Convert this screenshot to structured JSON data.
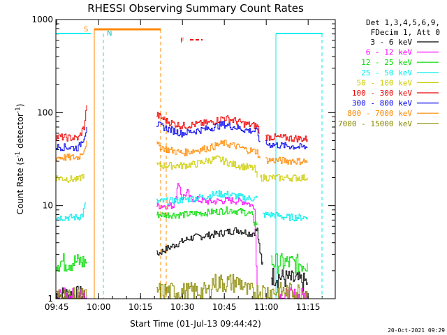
{
  "chart_data": {
    "type": "line",
    "title": "RHESSI Observing Summary Count Rates",
    "xlabel": "Start Time (01-Jul-13 09:44:42)",
    "ylabel_main": "Count Rate (s",
    "ylabel_sup1": "-1",
    "ylabel_mid": " detector",
    "ylabel_sup2": "-1",
    "ylabel_end": ")",
    "yscale": "log",
    "ylim": [
      1,
      1000
    ],
    "xlim_minutes": [
      0,
      100
    ],
    "x_ticks": [
      {
        "label": "09:45",
        "t": 0.3
      },
      {
        "label": "10:00",
        "t": 15.3
      },
      {
        "label": "10:15",
        "t": 30.3
      },
      {
        "label": "10:30",
        "t": 45.3
      },
      {
        "label": "10:45",
        "t": 60.3
      },
      {
        "label": "11:00",
        "t": 75.3
      },
      {
        "label": "11:15",
        "t": 90.3
      }
    ],
    "y_ticks": [
      {
        "label": "1",
        "v": 1
      },
      {
        "label": "10",
        "v": 10
      },
      {
        "label": "100",
        "v": 100
      },
      {
        "label": "1000",
        "v": 1000
      }
    ],
    "legend_header": [
      "Det 1,3,4,5,6,9,",
      "FDecim 1, Att 0"
    ],
    "flags": {
      "S": "S",
      "N": "N",
      "F": "F"
    },
    "series": [
      {
        "name": "3 - 6 keV",
        "color": "#000000",
        "segments": [
          [
            [
              0,
              1.1
            ],
            [
              11,
              1.1
            ]
          ],
          [
            [
              36,
              3
            ],
            [
              40,
              3.5
            ],
            [
              48,
              4.5
            ],
            [
              58,
              5
            ],
            [
              65,
              5.5
            ],
            [
              70,
              5
            ],
            [
              72,
              5.5
            ],
            [
              73,
              3
            ],
            [
              74,
              2.5
            ]
          ],
          [
            [
              77,
              1.8
            ],
            [
              85,
              1.6
            ],
            [
              90,
              1.5
            ]
          ]
        ]
      },
      {
        "name": "6 - 12 keV",
        "color": "#ff00ff",
        "segments": [
          [
            [
              0,
              1.05
            ],
            [
              11,
              1.05
            ]
          ],
          [
            [
              36,
              10
            ],
            [
              42,
              10
            ],
            [
              44,
              18
            ],
            [
              45,
              12
            ],
            [
              47,
              14
            ],
            [
              48,
              12
            ],
            [
              55,
              11
            ],
            [
              62,
              11.5
            ],
            [
              68,
              11
            ],
            [
              70,
              10
            ],
            [
              71,
              10
            ],
            [
              72,
              1.1
            ]
          ],
          [
            [
              80,
              1.05
            ],
            [
              90,
              1.05
            ]
          ]
        ]
      },
      {
        "name": "12 - 25 keV",
        "color": "#00dd00",
        "segments": [
          [
            [
              0,
              2.5
            ],
            [
              11,
              2.5
            ]
          ],
          [
            [
              36,
              8
            ],
            [
              45,
              8
            ],
            [
              55,
              8.5
            ],
            [
              62,
              9
            ],
            [
              68,
              8.5
            ],
            [
              70,
              8
            ],
            [
              71,
              6.5
            ],
            [
              72,
              6.5
            ]
          ],
          [
            [
              77,
              2.5
            ],
            [
              88,
              2.4
            ],
            [
              90,
              2.4
            ]
          ]
        ]
      },
      {
        "name": "25 - 50 keV",
        "color": "#00eeee",
        "segments": [
          [
            [
              0,
              7.5
            ],
            [
              8,
              7.5
            ],
            [
              9.5,
              8
            ],
            [
              10.5,
              11
            ]
          ],
          [
            [
              36,
              11
            ],
            [
              45,
              11.5
            ],
            [
              53,
              12.5
            ],
            [
              58,
              13.5
            ],
            [
              63,
              13
            ],
            [
              68,
              12
            ],
            [
              72,
              12
            ]
          ],
          [
            [
              74,
              8
            ],
            [
              78,
              8
            ],
            [
              82,
              7.5
            ],
            [
              90,
              7.5
            ]
          ]
        ]
      },
      {
        "name": "50 - 100 keV",
        "color": "#cccc00",
        "segments": [
          [
            [
              0,
              20
            ],
            [
              8,
              19
            ],
            [
              10,
              22
            ]
          ],
          [
            [
              36,
              27
            ],
            [
              45,
              27
            ],
            [
              50,
              28
            ],
            [
              55,
              31
            ],
            [
              58,
              32
            ],
            [
              63,
              28
            ],
            [
              68,
              26
            ],
            [
              71,
              25
            ],
            [
              72,
              20
            ]
          ],
          [
            [
              73,
              20
            ],
            [
              90,
              20
            ]
          ]
        ]
      },
      {
        "name": "100 - 300 keV",
        "color": "#ee0000",
        "segments": [
          [
            [
              0,
              55
            ],
            [
              8,
              53
            ],
            [
              10,
              70
            ],
            [
              11,
              120
            ]
          ],
          [
            [
              36,
              95
            ],
            [
              40,
              80
            ],
            [
              45,
              72
            ],
            [
              55,
              78
            ],
            [
              60,
              88
            ],
            [
              64,
              82
            ],
            [
              68,
              75
            ],
            [
              72,
              72
            ],
            [
              73,
              60
            ]
          ],
          [
            [
              75,
              55
            ],
            [
              90,
              52
            ]
          ]
        ]
      },
      {
        "name": "300 - 800 keV",
        "color": "#0000ee",
        "segments": [
          [
            [
              0,
              43
            ],
            [
              8,
              42
            ],
            [
              10,
              55
            ],
            [
              11,
              70
            ]
          ],
          [
            [
              36,
              75
            ],
            [
              40,
              67
            ],
            [
              45,
              60
            ],
            [
              55,
              68
            ],
            [
              60,
              75
            ],
            [
              64,
              70
            ],
            [
              68,
              65
            ],
            [
              72,
              63
            ],
            [
              73,
              48
            ]
          ],
          [
            [
              75,
              46
            ],
            [
              90,
              42
            ]
          ]
        ]
      },
      {
        "name": "800 - 7000 keV",
        "color": "#ff8800",
        "segments": [
          [
            [
              0,
              33
            ],
            [
              8,
              33
            ],
            [
              10,
              40
            ],
            [
              11,
              50
            ]
          ],
          [
            [
              36,
              45
            ],
            [
              40,
              40
            ],
            [
              45,
              37
            ],
            [
              55,
              42
            ],
            [
              60,
              47
            ],
            [
              64,
              44
            ],
            [
              68,
              40
            ],
            [
              72,
              38
            ],
            [
              73,
              32
            ]
          ],
          [
            [
              75,
              31
            ],
            [
              90,
              30
            ]
          ]
        ]
      },
      {
        "name": "7000 - 15000 keV",
        "color": "#888800",
        "segments": [
          [
            [
              0,
              1.05
            ],
            [
              11,
              1.05
            ]
          ],
          [
            [
              36,
              1.2
            ],
            [
              55,
              1.2
            ],
            [
              56,
              1.5
            ],
            [
              66,
              1.5
            ],
            [
              67,
              1.4
            ],
            [
              68,
              1.2
            ],
            [
              90,
              1.2
            ]
          ]
        ]
      }
    ]
  },
  "timestamp": "20-Oct-2021 09:29"
}
